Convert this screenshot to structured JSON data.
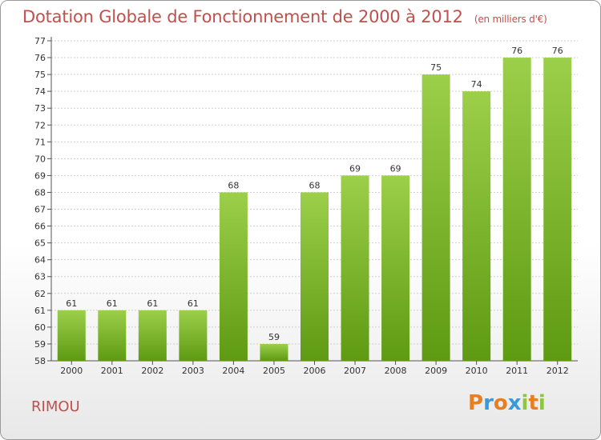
{
  "title": "Dotation Globale de Fonctionnement de 2000 à 2012",
  "subtitle": "(en milliers d'€)",
  "commune": "RIMOU",
  "logo": {
    "letters": [
      "P",
      "r",
      "o",
      "x",
      "i",
      "t",
      "i"
    ],
    "colors": [
      "#e67e22",
      "#3a9ad9",
      "#e67e22",
      "#3a9ad9",
      "#8dc63f",
      "#e67e22",
      "#8dc63f"
    ]
  },
  "colors": {
    "bar_top": "#9ccf4a",
    "bar_bottom": "#5e9a12",
    "title": "#c0504d"
  },
  "chart_data": {
    "type": "bar",
    "title": "Dotation Globale de Fonctionnement de 2000 à 2012",
    "subtitle": "(en milliers d'€)",
    "categories": [
      "2000",
      "2001",
      "2002",
      "2003",
      "2004",
      "2005",
      "2006",
      "2007",
      "2008",
      "2009",
      "2010",
      "2011",
      "2012"
    ],
    "values": [
      61,
      61,
      61,
      61,
      68,
      59,
      68,
      69,
      69,
      75,
      74,
      76,
      76
    ],
    "ylim": [
      58,
      77
    ],
    "yticks": [
      58,
      59,
      60,
      61,
      62,
      63,
      64,
      65,
      66,
      67,
      68,
      69,
      70,
      71,
      72,
      73,
      74,
      75,
      76,
      77
    ],
    "grid": true
  }
}
